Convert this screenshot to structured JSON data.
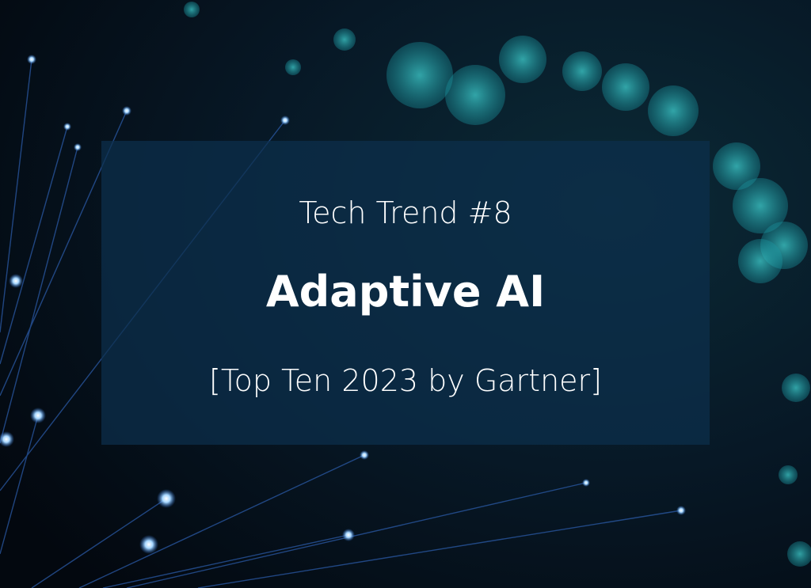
{
  "kicker": "Tech Trend #8",
  "title": "Adaptive AI",
  "subtitle": "[Top Ten 2023 by Gartner]"
}
